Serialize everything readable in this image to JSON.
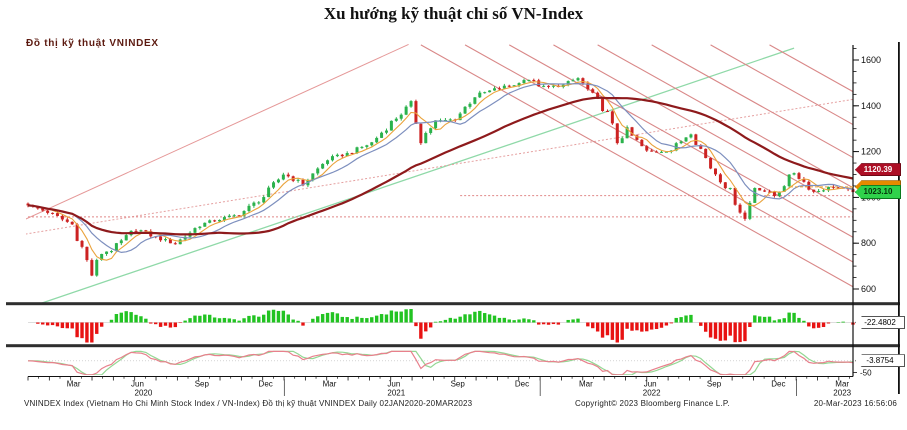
{
  "title": "Xu hướng kỹ thuật chỉ số VN-Index",
  "chart_header": "Đồ thị kỹ thuật VNINDEX",
  "badges": {
    "red": {
      "text": "1120.39",
      "price": 1120.39,
      "bg": "#ad0e25",
      "fg": "#ffffff",
      "border": "#6f0715"
    },
    "orange": {
      "text": "",
      "price": 1046,
      "bg": "#e68a00",
      "fg": "#222222",
      "border": "#9c5e02"
    },
    "green": {
      "text": "1023.10",
      "price": 1023.1,
      "bg": "#2fd24b",
      "fg": "#06350c",
      "border": "#0a7a1e"
    }
  },
  "panel2": {
    "value_label": "-22.4802"
  },
  "panel3": {
    "value_label": "-3.8754",
    "axis_tick": "-50"
  },
  "footer": {
    "left": "VNINDEX Index (Vietnam Ho Chi Minh Stock Index / VN-Index) Đồ thị kỹ thuật VNINDEX  Daily 02JAN2020-20MAR2023",
    "copyright": "Copyright© 2023 Bloomberg Finance L.P.",
    "timestamp": "20-Mar-2023 16:56:06"
  },
  "chart_data": {
    "type": "candlestick",
    "title": "Đồ thị kỹ thuật VNINDEX",
    "date_range": [
      "02JAN2020",
      "20MAR2023"
    ],
    "last_close": 1023.1,
    "candle_up": "#2bb24c",
    "candle_down": "#cc2222",
    "y_axis": {
      "ticks": [
        600,
        800,
        1000,
        1200,
        1400,
        1600
      ],
      "minor_step": 50
    },
    "x_axis": {
      "quarter_labels": [
        {
          "label": "Mar",
          "week": 9.3
        },
        {
          "label": "Jun",
          "week": 22.3
        },
        {
          "label": "Sep",
          "week": 35.4
        },
        {
          "label": "Dec",
          "week": 48.4
        },
        {
          "label": "Mar",
          "week": 61.4
        },
        {
          "label": "Jun",
          "week": 74.5
        },
        {
          "label": "Sep",
          "week": 87.5
        },
        {
          "label": "Dec",
          "week": 100.6
        },
        {
          "label": "Mar",
          "week": 113.6
        },
        {
          "label": "Jun",
          "week": 126.7
        },
        {
          "label": "Sep",
          "week": 139.7
        },
        {
          "label": "Dec",
          "week": 152.8
        },
        {
          "label": "Mar",
          "week": 165.8
        }
      ],
      "year_labels": [
        {
          "label": "2020",
          "week": 23.5
        },
        {
          "label": "2021",
          "week": 75
        },
        {
          "label": "2022",
          "week": 127
        },
        {
          "label": "2023",
          "week": 165.8
        }
      ],
      "year_divider_weeks": [
        52.2,
        104.3,
        156.5
      ],
      "weeks_total": 168
    },
    "series_weekly_close_anchors": [
      [
        0,
        965
      ],
      [
        4,
        936
      ],
      [
        9,
        882
      ],
      [
        11,
        780
      ],
      [
        13,
        663
      ],
      [
        15,
        760
      ],
      [
        17,
        769
      ],
      [
        22,
        864
      ],
      [
        26,
        825
      ],
      [
        30,
        798
      ],
      [
        35,
        881
      ],
      [
        39,
        905
      ],
      [
        43,
        925
      ],
      [
        48,
        1003
      ],
      [
        52,
        1104
      ],
      [
        56,
        1057
      ],
      [
        61,
        1168
      ],
      [
        65,
        1191
      ],
      [
        70,
        1239
      ],
      [
        74,
        1328
      ],
      [
        78,
        1408
      ],
      [
        80,
        1255
      ],
      [
        83,
        1331
      ],
      [
        87,
        1342
      ],
      [
        91,
        1444
      ],
      [
        96,
        1478
      ],
      [
        100,
        1498
      ],
      [
        101,
        1528
      ],
      [
        105,
        1479
      ],
      [
        109,
        1490
      ],
      [
        112,
        1520
      ],
      [
        118,
        1366
      ],
      [
        120,
        1245
      ],
      [
        122,
        1292
      ],
      [
        126,
        1197
      ],
      [
        131,
        1206
      ],
      [
        135,
        1288
      ],
      [
        139,
        1132
      ],
      [
        143,
        1027
      ],
      [
        146,
        905
      ],
      [
        148,
        1048
      ],
      [
        152,
        1007
      ],
      [
        156,
        1111
      ],
      [
        160,
        1024
      ],
      [
        164,
        1048
      ],
      [
        168,
        1023.1
      ]
    ],
    "indicators": {
      "ma_short": {
        "window": 5,
        "color": "#eaa33c"
      },
      "ma_mid": {
        "window": 10,
        "color": "#7d8fbe"
      },
      "ma_long": {
        "window": 40,
        "color": "#8e1a1c"
      }
    },
    "trend_lines": [
      {
        "w1": 0.4,
        "p1": 521,
        "w2": 156,
        "p2": 1652,
        "color": "#8fd9a8",
        "width": 1.3,
        "dash": ""
      },
      {
        "w1": -0.5,
        "p1": 905,
        "w2": 77.5,
        "p2": 1668,
        "color": "#e59898",
        "width": 1,
        "dash": ""
      },
      {
        "w1": -0.5,
        "p1": 840,
        "w2": 168,
        "p2": 1428,
        "color": "#e5a0a0",
        "width": 1,
        "dash": "2,2"
      },
      {
        "w1": 0,
        "p1": 915,
        "w2": 168,
        "p2": 915,
        "color": "#e08888",
        "width": 1,
        "dash": "2,2"
      },
      {
        "w1": 88,
        "p1": 1008,
        "w2": 168,
        "p2": 1008,
        "color": "#e08888",
        "width": 1,
        "dash": "2,2"
      },
      {
        "w1": 80,
        "p1": 1666,
        "w2": 168,
        "p2": 610,
        "color": "#d98888",
        "width": 1.1,
        "dash": ""
      },
      {
        "w1": 89,
        "p1": 1666,
        "w2": 168,
        "p2": 718,
        "color": "#d98888",
        "width": 1.1,
        "dash": ""
      },
      {
        "w1": 98,
        "p1": 1666,
        "w2": 168,
        "p2": 826,
        "color": "#d98888",
        "width": 1.1,
        "dash": ""
      },
      {
        "w1": 107,
        "p1": 1666,
        "w2": 168,
        "p2": 934,
        "color": "#d98888",
        "width": 1.1,
        "dash": ""
      },
      {
        "w1": 116,
        "p1": 1666,
        "w2": 168,
        "p2": 1042,
        "color": "#d98888",
        "width": 1.1,
        "dash": ""
      },
      {
        "w1": 127,
        "p1": 1666,
        "w2": 168,
        "p2": 1174,
        "color": "#d98888",
        "width": 1.1,
        "dash": ""
      },
      {
        "w1": 139,
        "p1": 1666,
        "w2": 168,
        "p2": 1318,
        "color": "#d98888",
        "width": 1.1,
        "dash": ""
      },
      {
        "w1": 151,
        "p1": 1666,
        "w2": 168,
        "p2": 1462,
        "color": "#d98888",
        "width": 1.1,
        "dash": ""
      }
    ],
    "panel2": {
      "type": "histogram",
      "last_value": -22.4802,
      "pos_color": "#22c322",
      "neg_color": "#e81212"
    },
    "panel3": {
      "type": "oscillator",
      "last_value": -3.8754,
      "axis_min_label": -50,
      "line_colors": [
        "#e8808c",
        "#93d793"
      ]
    }
  }
}
